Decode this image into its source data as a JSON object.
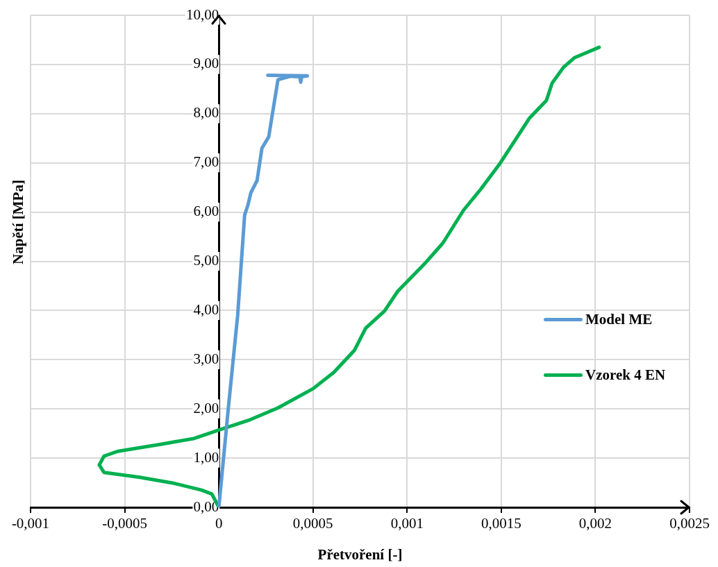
{
  "chart_data": {
    "type": "line",
    "xlabel": "Přetvoření [-]",
    "ylabel": "Napětí [MPa]",
    "xlim": [
      -0.001,
      0.0025
    ],
    "ylim": [
      0,
      10
    ],
    "xticks": [
      {
        "value": -0.001,
        "label": "-0,001"
      },
      {
        "value": -0.0005,
        "label": "-0,0005"
      },
      {
        "value": 0,
        "label": "0"
      },
      {
        "value": 0.0005,
        "label": "0,0005"
      },
      {
        "value": 0.001,
        "label": "0,001"
      },
      {
        "value": 0.0015,
        "label": "0,0015"
      },
      {
        "value": 0.002,
        "label": "0,002"
      },
      {
        "value": 0.0025,
        "label": "0,0025"
      }
    ],
    "yticks": [
      {
        "value": 0,
        "label": "0,00"
      },
      {
        "value": 1,
        "label": "1,00"
      },
      {
        "value": 2,
        "label": "2,00"
      },
      {
        "value": 3,
        "label": "3,00"
      },
      {
        "value": 4,
        "label": "4,00"
      },
      {
        "value": 5,
        "label": "5,00"
      },
      {
        "value": 6,
        "label": "6,00"
      },
      {
        "value": 7,
        "label": "7,00"
      },
      {
        "value": 8,
        "label": "8,00"
      },
      {
        "value": 9,
        "label": "9,00"
      },
      {
        "value": 10,
        "label": "10,00"
      }
    ],
    "grid": true,
    "legend": "right",
    "marker": "none",
    "line_style": "solid",
    "series": [
      {
        "name": "Model ME",
        "color": "#5b9bd5",
        "x": [
          0,
          5e-05,
          0.0001,
          0.000137,
          0.000155,
          0.00017,
          0.000203,
          0.000229,
          0.000265,
          0.000314,
          0.00038,
          0.00043,
          0.000435,
          0.00044,
          0.00047,
          0.00026
        ],
        "values": [
          0,
          2.0,
          3.9,
          5.94,
          6.15,
          6.39,
          6.64,
          7.3,
          7.53,
          8.69,
          8.76,
          8.75,
          8.64,
          8.75,
          8.77,
          8.78
        ]
      },
      {
        "name": "Vzorek 4 EN",
        "color": "#00b050",
        "x": [
          0,
          -3.7e-05,
          -9.2e-05,
          -0.00024,
          -0.00042,
          -0.00061,
          -0.000635,
          -0.00061,
          -0.000535,
          -0.00031,
          -0.00013,
          0,
          0.000166,
          0.000314,
          0.0005,
          0.00061,
          0.00072,
          0.00078,
          0.00088,
          0.00095,
          0.0011,
          0.00119,
          0.0013,
          0.00139,
          0.00149,
          0.00165,
          0.00174,
          0.00177,
          0.00183,
          0.00189,
          0.00202
        ],
        "values": [
          0,
          0.27,
          0.35,
          0.49,
          0.61,
          0.71,
          0.86,
          1.04,
          1.14,
          1.28,
          1.4,
          1.57,
          1.78,
          2.02,
          2.41,
          2.74,
          3.19,
          3.64,
          3.99,
          4.39,
          4.98,
          5.37,
          6.04,
          6.46,
          6.97,
          7.91,
          8.27,
          8.62,
          8.94,
          9.14,
          9.35
        ]
      }
    ]
  }
}
